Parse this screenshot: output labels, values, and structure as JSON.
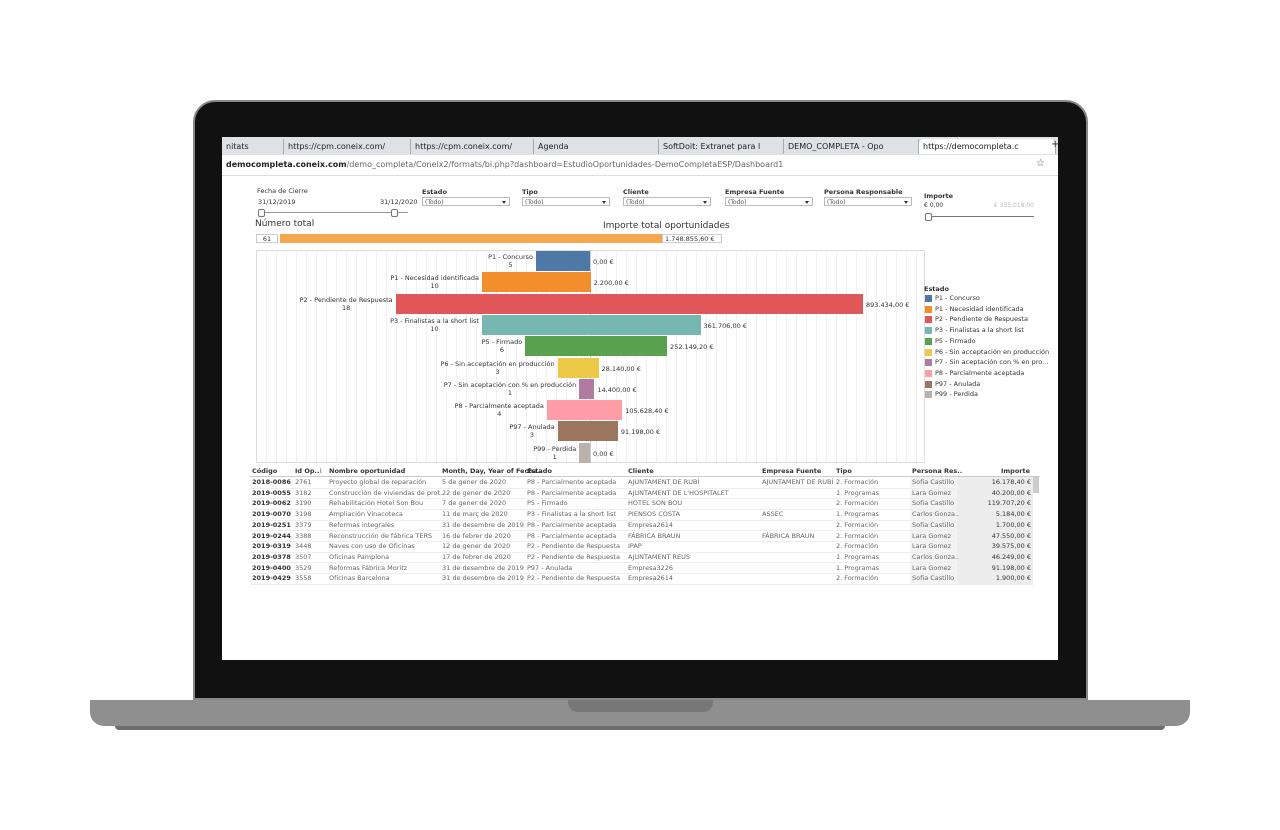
{
  "browser": {
    "tabs": [
      "nitats",
      "https://cpm.coneix.com/",
      "https://cpm.coneix.com/",
      "Agenda",
      "SoftDoit: Extranet para l",
      "DEMO_COMPLETA - Opo",
      "https://democompleta.c"
    ],
    "url_host": "democompleta.coneix.com",
    "url_path": "/demo_completa/Coneix2/formats/bi.php?dashboard=EstudioOportunidades-DemoCompletaESP/Dashboard1"
  },
  "filters": {
    "fecha_label": "Fecha de Cierre",
    "fecha_from": "31/12/2019",
    "fecha_to": "31/12/2020",
    "selects": [
      {
        "label": "Estado",
        "value": "(Todo)"
      },
      {
        "label": "Tipo",
        "value": "(Todo)"
      },
      {
        "label": "Cliente",
        "value": "(Todo)"
      },
      {
        "label": "Empresa Fuente",
        "value": "(Todo)"
      },
      {
        "label": "Persona Responsable",
        "value": "(Todo)"
      }
    ],
    "importe_label": "Importe",
    "importe_min": "€ 0,00",
    "importe_max": "€ 335.018,00"
  },
  "summary": {
    "count_label": "Número total",
    "count": "61",
    "amount_label": "Importe total oportunidades",
    "amount": "1.748.855,60 €"
  },
  "chart_data": {
    "type": "funnel",
    "categories": [
      "P1 - Concurso",
      "P1 - Necesidad identificada",
      "P2 - Pendiente de Respuesta",
      "P3 - Finalistas a la short list",
      "P5 - Firmado",
      "P6 - Sin acceptación en producción",
      "P7 - Sin aceptación con % en producción",
      "P8 - Parcialmente aceptada",
      "P97 - Anulada",
      "P99 - Perdida"
    ],
    "counts": [
      5,
      10,
      18,
      10,
      6,
      3,
      1,
      4,
      3,
      1
    ],
    "values": [
      0,
      2200,
      893434,
      361706,
      252149.2,
      28140,
      14400,
      105628.4,
      91198,
      0
    ],
    "value_labels": [
      "0,00 €",
      "2.200,00 €",
      "893.434,00 €",
      "361.706,00 €",
      "252.149,20 €",
      "28.140,00 €",
      "14.400,00 €",
      "105.628,40 €",
      "91.198,00 €",
      "0,00 €"
    ],
    "colors": [
      "#4e79a7",
      "#f28e2b",
      "#e15759",
      "#76b7b2",
      "#59a14f",
      "#edc948",
      "#b07aa1",
      "#ff9da7",
      "#9c755f",
      "#bab0ac"
    ],
    "legend_title": "Estado",
    "legend_labels": [
      "P1 - Concurso",
      "P1 - Necesidad identificada",
      "P2 - Pendiente de Respuesta",
      "P3 - Finalistas a la short list",
      "P5 - Firmado",
      "P6 - Sin acceptación en producción",
      "P7 - Sin aceptación con % en pro...",
      "P8 - Parcialmente aceptada",
      "P97 - Anulada",
      "P99 - Perdida"
    ]
  },
  "table": {
    "headers": [
      "Código",
      "Id Op..",
      "Nombre oportunidad",
      "Month, Day, Year of Fecha..",
      "Estado",
      "Cliente",
      "Empresa Fuente",
      "Tipo",
      "Persona Res..",
      "Importe"
    ],
    "rows": [
      [
        "2018-0086",
        "2761",
        "Proyecto global de reparación",
        "5 de gener de 2020",
        "P8 - Parcialmente aceptada",
        "AJUNTAMENT DE RUBÍ",
        "AJUNTAMENT DE RUBÍ",
        "2. Formación",
        "Sofia Castillo",
        "16.178,40 €"
      ],
      [
        "2019-0055",
        "3182",
        "Construcción de viviendas de prot..",
        "22 de gener de 2020",
        "P8 - Parcialmente aceptada",
        "AJUNTAMENT DE L'HOSPITALET",
        null,
        "1. Programas",
        "Lara Gomez",
        "40.200,00 €"
      ],
      [
        "2019-0062",
        "3190",
        "Rehabilitación Hotel Son Bou",
        "7 de gener de 2020",
        "P5 - Firmado",
        "HOTEL SON BOU",
        null,
        "2. Formación",
        "Sofia Castillo",
        "119.707,20 €"
      ],
      [
        "2019-0070",
        "3198",
        "Ampliación Vinacoteca",
        "11 de març de 2020",
        "P3 - Finalistas a la short list",
        "PIENSOS COSTA",
        "ASSEC",
        "1. Programas",
        "Carlos Gonza..",
        "5.184,00 €"
      ],
      [
        "2019-0251",
        "3379",
        "Reformas integrales",
        "31 de desembre de 2019",
        "P8 - Parcialmente aceptada",
        "Empresa2614",
        null,
        "2. Formación",
        "Sofia Castillo",
        "1.700,00 €"
      ],
      [
        "2019-0244",
        "3388",
        "Reconstrucción de fábrica TERS",
        "16 de febrer de 2020",
        "P8 - Parcialmente aceptada",
        "FÁBRICA BRAUN",
        "FÁBRICA BRAUN",
        "2. Formación",
        "Lara Gomez",
        "47.550,00 €"
      ],
      [
        "2019-0319",
        "3448",
        "Naves con uso de Oficinas",
        "12 de gener de 2020",
        "P2 - Pendiente de Respuesta",
        "IPAP",
        null,
        "2. Formación",
        "Lara Gomez",
        "39.575,00 €"
      ],
      [
        "2019-0378",
        "3507",
        "Oficinas Pamplona",
        "17 de febrer de 2020",
        "P2 - Pendiente de Respuesta",
        "AJUNTAMENT REUS",
        null,
        "1. Programas",
        "Carlos Gonza..",
        "46.249,00 €"
      ],
      [
        "2019-0400",
        "3529",
        "Reformas Fábrica Moritz",
        "31 de desembre de 2019",
        "P97 - Anulada",
        "Empresa3226",
        null,
        "1. Programas",
        "Lara Gomez",
        "91.198,00 €"
      ],
      [
        "2019-0429",
        "3558",
        "Oficinas Barcelona",
        "31 de desembre de 2019",
        "P2 - Pendiente de Respuesta",
        "Empresa2614",
        null,
        "2. Formación",
        "Sofia Castillo",
        "1.900,00 €"
      ]
    ]
  }
}
